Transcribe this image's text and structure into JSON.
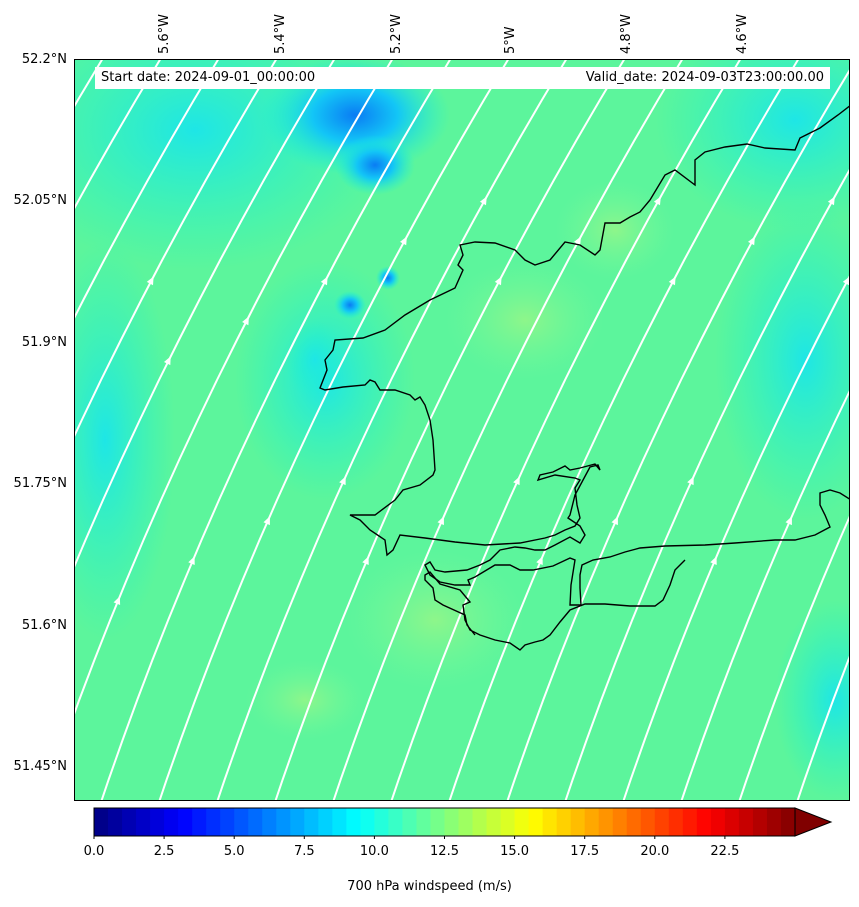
{
  "info_bar": {
    "start_date": "Start date: 2024-09-01_00:00:00",
    "valid_date": "Valid_date: 2024-09-03T23:00:00.00"
  },
  "map": {
    "longitude_labels": [
      "5.6°W",
      "5.4°W",
      "5.2°W",
      "5°W",
      "4.8°W",
      "4.6°W"
    ],
    "latitude_labels": [
      "52.2°N",
      "52.05°N",
      "51.9°N",
      "51.75°N",
      "51.6°N",
      "51.45°N"
    ],
    "field": "700 hPa windspeed",
    "background_color": "#5cf59c",
    "streamline_color": "#ffffff",
    "coastline_color": "#000000",
    "wind_direction": "from south-southwest toward north-northeast"
  },
  "colorbar": {
    "ticks": [
      "0.0",
      "2.5",
      "5.0",
      "7.5",
      "10.0",
      "12.5",
      "15.0",
      "17.5",
      "20.0",
      "22.5"
    ],
    "label": "700 hPa windspeed (m/s)",
    "min": 0,
    "max": 25,
    "extend": "max",
    "colormap": "jet"
  }
}
